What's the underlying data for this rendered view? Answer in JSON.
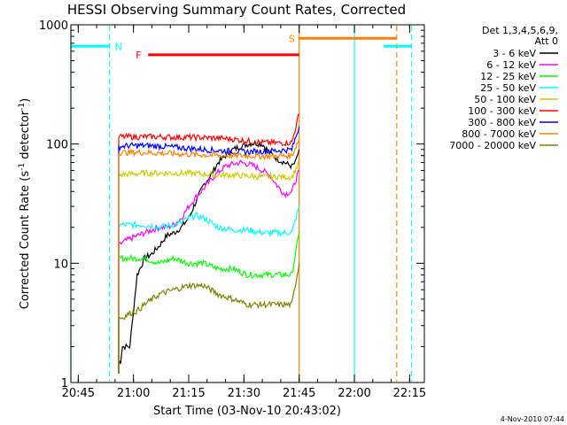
{
  "chart_data": {
    "type": "line",
    "title": "HESSI Observing Summary Count Rates, Corrected",
    "xlabel": "Start Time (03-Nov-10 20:43:02)",
    "ylabel_main": "Corrected Count Rate (s",
    "ylabel_sup1": "-1",
    "ylabel_mid": " detector",
    "ylabel_sup2": "-1",
    "ylabel_end": ")",
    "x_units": "minutes after 20:43:02 UT",
    "xlim": [
      0,
      96
    ],
    "ylim": [
      1,
      1000
    ],
    "y_scale": "log",
    "x_ticks": [
      {
        "value": 2,
        "label": "20:45"
      },
      {
        "value": 17,
        "label": "21:00"
      },
      {
        "value": 32,
        "label": "21:15"
      },
      {
        "value": 47,
        "label": "21:30"
      },
      {
        "value": 62,
        "label": "21:45"
      },
      {
        "value": 77,
        "label": "22:00"
      },
      {
        "value": 92,
        "label": "22:15"
      }
    ],
    "y_ticks": [
      {
        "value": 1,
        "label": "1"
      },
      {
        "value": 10,
        "label": "10"
      },
      {
        "value": 100,
        "label": "100"
      },
      {
        "value": 1000,
        "label": "1000"
      }
    ],
    "legend_header": [
      "Det 1,3,4,5,6,9,",
      "Att 0"
    ],
    "legend_position": "top-right",
    "series": [
      {
        "name": "3 - 6 keV",
        "color": "#000000",
        "x": [
          13,
          13.5,
          14,
          15,
          16,
          17,
          18,
          20,
          22,
          24,
          26,
          28,
          30,
          32,
          34,
          36,
          38,
          40,
          42,
          44,
          46,
          48,
          50,
          52,
          54,
          56,
          58,
          60,
          61,
          62
        ],
        "y": [
          1.5,
          1.5,
          2,
          2,
          2,
          4,
          8,
          11,
          12,
          14,
          17,
          18,
          20,
          24,
          33,
          45,
          55,
          70,
          80,
          90,
          95,
          100,
          102,
          100,
          85,
          75,
          70,
          65,
          70,
          90
        ]
      },
      {
        "name": "6 - 12 keV",
        "color": "#ff00ff",
        "x": [
          13,
          14,
          16,
          18,
          20,
          22,
          24,
          26,
          28,
          30,
          32,
          34,
          36,
          38,
          40,
          42,
          44,
          46,
          48,
          50,
          52,
          54,
          56,
          58,
          60,
          62
        ],
        "y": [
          14,
          15,
          16,
          17,
          18,
          19,
          20,
          20,
          21,
          24,
          30,
          36,
          42,
          50,
          58,
          65,
          68,
          70,
          68,
          65,
          60,
          55,
          45,
          38,
          40,
          60
        ]
      },
      {
        "name": "12 - 25 keV",
        "color": "#00ff00",
        "x": [
          13,
          16,
          20,
          24,
          28,
          32,
          36,
          40,
          44,
          48,
          52,
          56,
          60,
          62
        ],
        "y": [
          11,
          11,
          11,
          10,
          11,
          10,
          10,
          9,
          9,
          8,
          8,
          8,
          8,
          18
        ]
      },
      {
        "name": "25 - 50 keV",
        "color": "#00ffff",
        "x": [
          13,
          16,
          20,
          24,
          28,
          30,
          32,
          34,
          36,
          38,
          40,
          44,
          48,
          52,
          56,
          60,
          62
        ],
        "y": [
          21,
          21,
          21,
          20,
          21,
          22,
          24,
          25,
          24,
          22,
          20,
          19,
          19,
          18,
          18,
          18,
          30
        ]
      },
      {
        "name": "50 - 100 keV",
        "color": "#cccc00",
        "x": [
          13,
          16,
          20,
          24,
          28,
          32,
          36,
          40,
          44,
          48,
          52,
          56,
          60,
          62
        ],
        "y": [
          55,
          56,
          57,
          57,
          57,
          57,
          56,
          55,
          55,
          54,
          53,
          53,
          53,
          70
        ]
      },
      {
        "name": "100 - 300 keV",
        "color": "#ff0000",
        "x": [
          13,
          16,
          20,
          24,
          28,
          32,
          36,
          40,
          44,
          48,
          52,
          56,
          60,
          62
        ],
        "y": [
          115,
          115,
          115,
          115,
          114,
          114,
          113,
          112,
          110,
          106,
          103,
          102,
          103,
          180
        ]
      },
      {
        "name": "300 - 800 keV",
        "color": "#0000ff",
        "x": [
          13,
          16,
          20,
          24,
          28,
          32,
          36,
          40,
          44,
          48,
          52,
          56,
          60,
          62
        ],
        "y": [
          95,
          97,
          97,
          96,
          94,
          92,
          90,
          88,
          87,
          86,
          87,
          88,
          90,
          140
        ]
      },
      {
        "name": "800 - 7000 keV",
        "color": "#ff8000",
        "x": [
          13,
          16,
          20,
          24,
          28,
          32,
          36,
          40,
          44,
          48,
          52,
          56,
          60,
          62
        ],
        "y": [
          85,
          85,
          85,
          84,
          83,
          82,
          81,
          80,
          80,
          80,
          79,
          79,
          80,
          110
        ]
      },
      {
        "name": "7000 - 20000 keV",
        "color": "#808000",
        "x": [
          13,
          14,
          16,
          18,
          20,
          24,
          28,
          32,
          36,
          40,
          44,
          48,
          52,
          56,
          60,
          62
        ],
        "y": [
          3.5,
          3.5,
          3.8,
          4,
          4.5,
          5.5,
          6,
          6.5,
          6.5,
          5.5,
          5,
          4.5,
          4.5,
          4.5,
          4.5,
          10
        ]
      }
    ],
    "annotations": {
      "saa_bar": {
        "label": "N",
        "color": "#00ffff",
        "level": 660,
        "segments": [
          [
            0,
            10.5
          ],
          [
            85,
            92.5
          ]
        ]
      },
      "flare_bar": {
        "label": "F",
        "color": "#ff0000",
        "level": 560,
        "span": [
          21,
          62
        ]
      },
      "s_bar": {
        "label": "S",
        "color": "#ff8000",
        "level": 770,
        "span": [
          62,
          88.5
        ]
      },
      "cyan_solid_lines": [
        0,
        77
      ],
      "cyan_dashed_lines": [
        10.5,
        92.5
      ],
      "orange_solid_lines": [
        62
      ],
      "orange_dashed_lines": [
        88.5
      ],
      "gap_interval": [
        0,
        13
      ]
    },
    "grid": false,
    "footer_date": "4-Nov-2010 07:44"
  }
}
